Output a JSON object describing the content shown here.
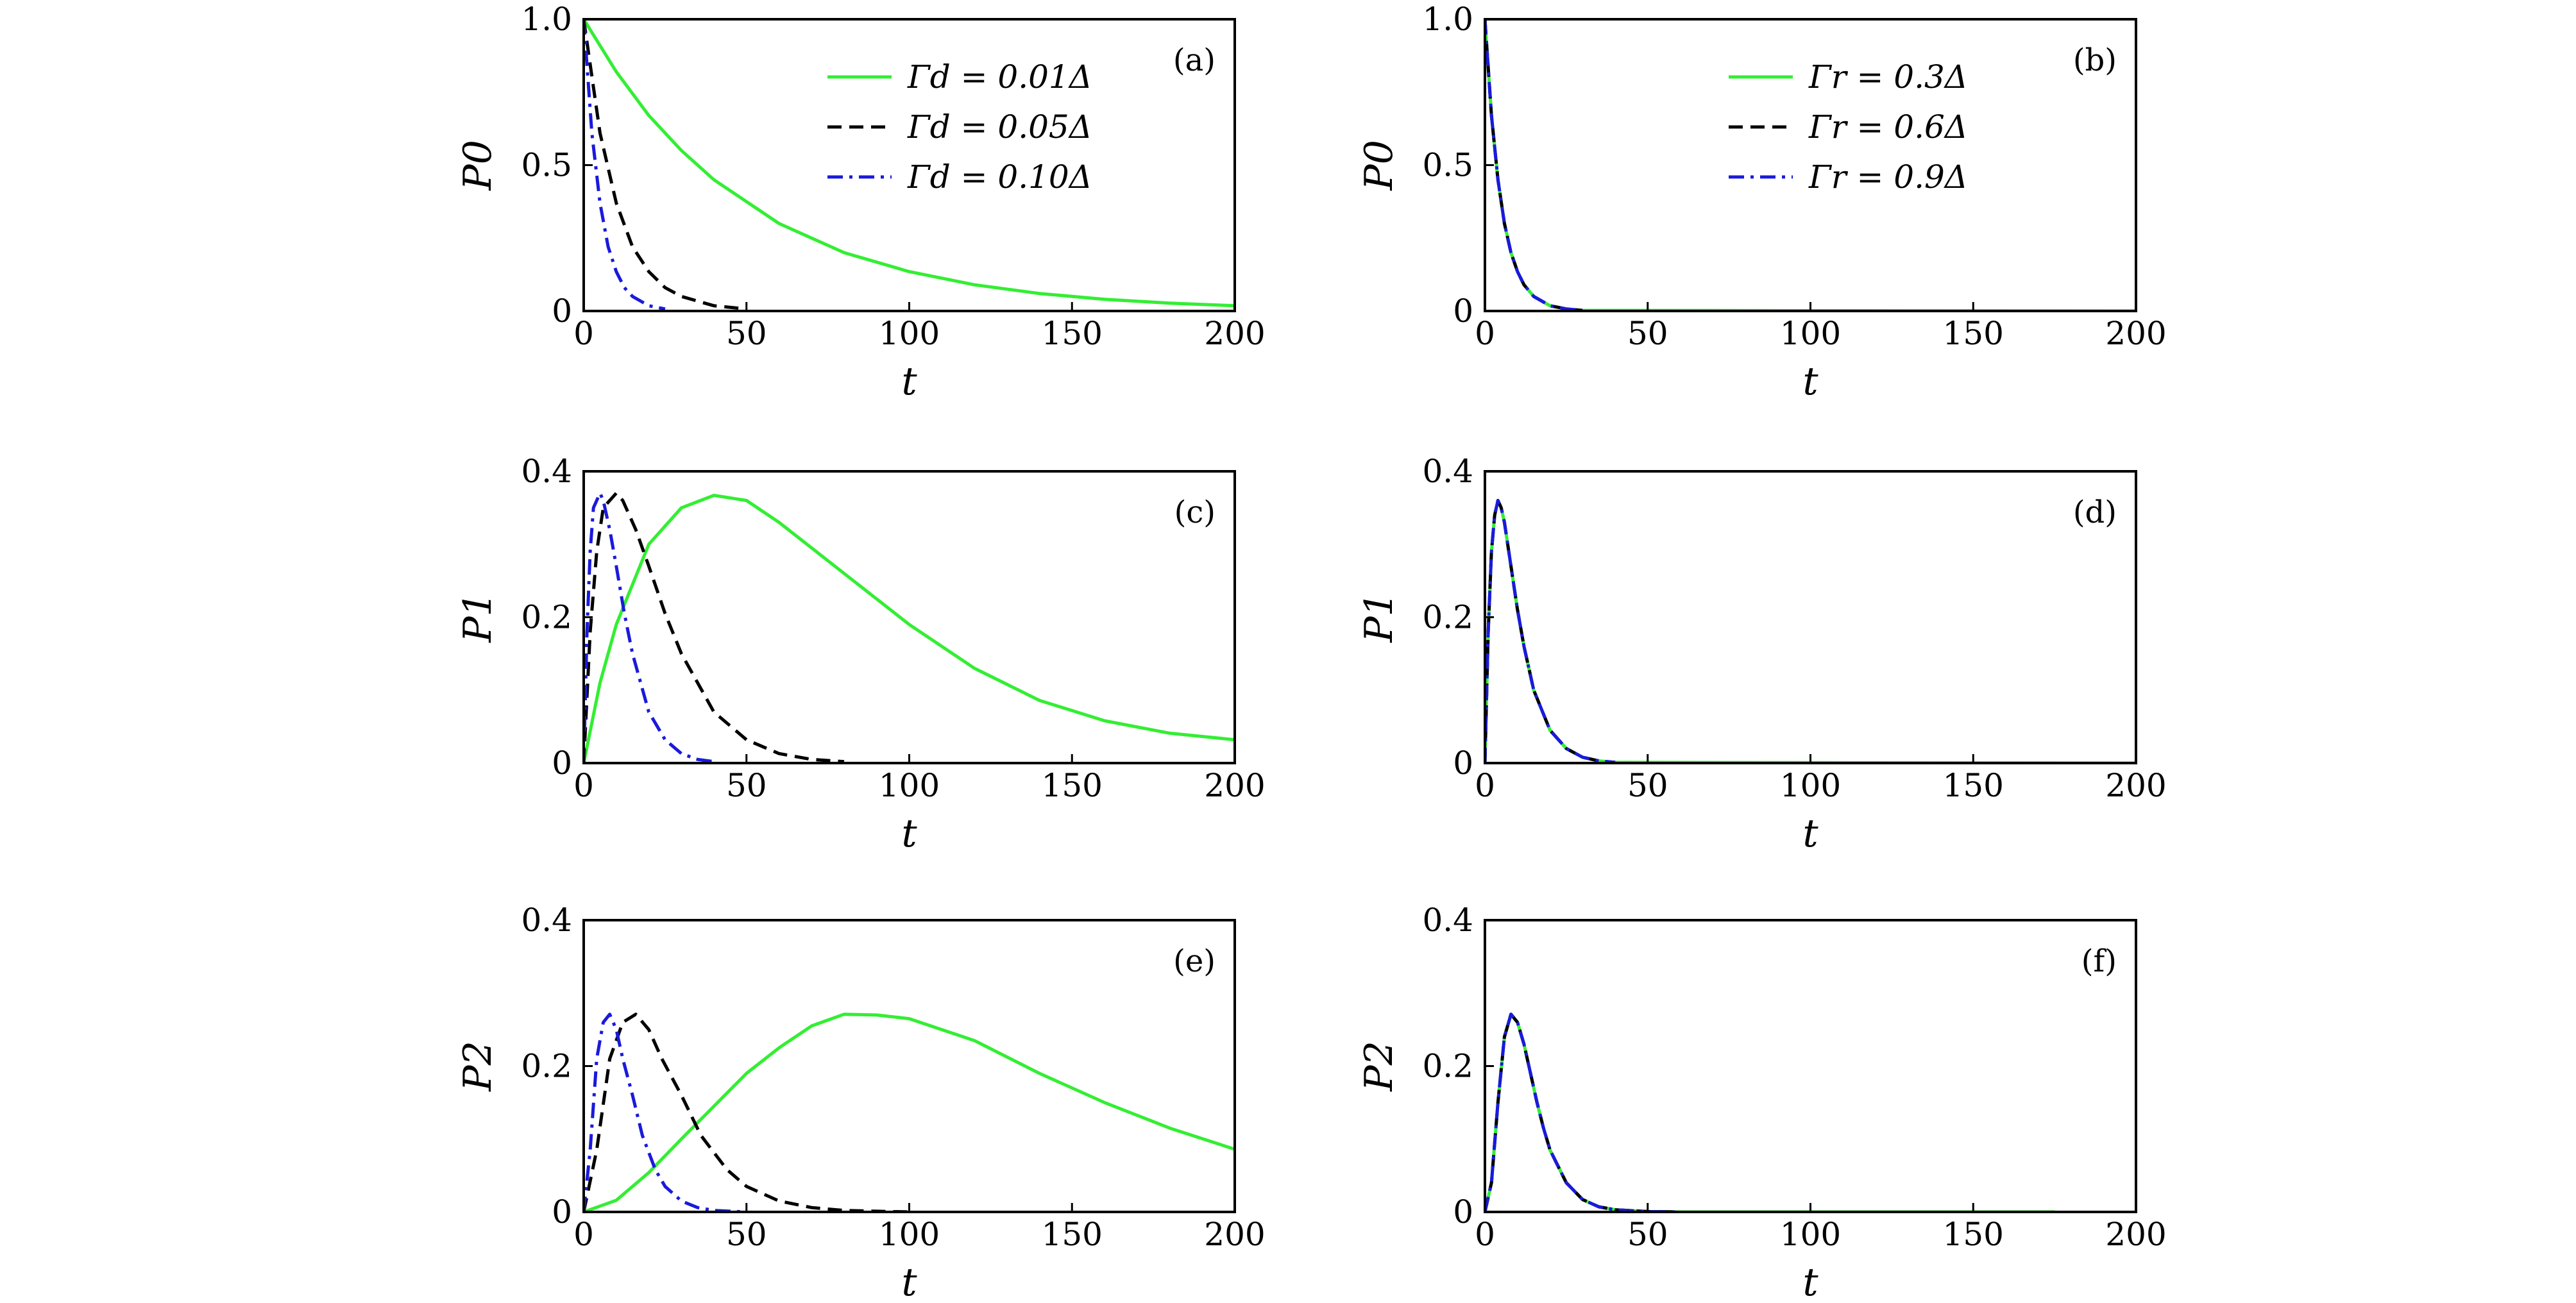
{
  "colors": {
    "green": "#33ee33",
    "black": "#000000",
    "blue": "#1a1adb"
  },
  "legends": {
    "left": [
      "Γd = 0.01Δ",
      "Γd = 0.05Δ",
      "Γd = 0.10Δ"
    ],
    "right": [
      "Γr = 0.3Δ",
      "Γr = 0.6Δ",
      "Γr = 0.9Δ"
    ]
  },
  "chart_data": [
    {
      "panel": "(a)",
      "type": "line",
      "xlabel": "t",
      "ylabel": "P0",
      "xlim": [
        0,
        200
      ],
      "ylim": [
        0,
        1.0
      ],
      "xticks": [
        "0",
        "50",
        "100",
        "150",
        "200"
      ],
      "yticks": [
        "0",
        "0.5",
        "1.0"
      ],
      "legend": "left",
      "series": [
        {
          "name": "Γd = 0.01Δ",
          "color": "green",
          "style": "solid",
          "x": [
            0,
            10,
            20,
            30,
            40,
            60,
            80,
            100,
            120,
            140,
            160,
            180,
            200
          ],
          "y": [
            1.0,
            0.82,
            0.67,
            0.55,
            0.45,
            0.3,
            0.2,
            0.135,
            0.09,
            0.06,
            0.04,
            0.027,
            0.018
          ]
        },
        {
          "name": "Γd = 0.05Δ",
          "color": "black",
          "style": "dashed",
          "x": [
            0,
            5,
            10,
            15,
            20,
            25,
            30,
            40,
            50
          ],
          "y": [
            1.0,
            0.61,
            0.37,
            0.22,
            0.135,
            0.08,
            0.05,
            0.018,
            0.007
          ]
        },
        {
          "name": "Γd = 0.10Δ",
          "color": "blue",
          "style": "dashdot",
          "x": [
            0,
            2.5,
            5,
            7.5,
            10,
            12.5,
            15,
            20,
            25
          ],
          "y": [
            1.0,
            0.61,
            0.37,
            0.22,
            0.135,
            0.08,
            0.05,
            0.018,
            0.007
          ]
        }
      ]
    },
    {
      "panel": "(b)",
      "type": "line",
      "xlabel": "t",
      "ylabel": "P0",
      "xlim": [
        0,
        200
      ],
      "ylim": [
        0,
        1.0
      ],
      "xticks": [
        "0",
        "50",
        "100",
        "150",
        "200"
      ],
      "yticks": [
        "0",
        "0.5",
        "1.0"
      ],
      "legend": "right",
      "series": [
        {
          "name": "Γr = 0.3Δ",
          "color": "green",
          "style": "solid",
          "x": [
            0,
            2,
            4,
            6,
            8,
            10,
            12,
            15,
            20,
            25,
            30,
            200
          ],
          "y": [
            1.0,
            0.67,
            0.45,
            0.3,
            0.2,
            0.135,
            0.09,
            0.05,
            0.018,
            0.007,
            0.002,
            0.0
          ]
        },
        {
          "name": "Γr = 0.6Δ",
          "color": "black",
          "style": "dashed",
          "x": [
            0,
            2,
            4,
            6,
            8,
            10,
            12,
            15,
            20,
            25,
            30
          ],
          "y": [
            1.0,
            0.67,
            0.45,
            0.3,
            0.2,
            0.135,
            0.09,
            0.05,
            0.018,
            0.007,
            0.002
          ]
        },
        {
          "name": "Γr = 0.9Δ",
          "color": "blue",
          "style": "dashdot",
          "x": [
            0,
            2,
            4,
            6,
            8,
            10,
            12,
            15,
            20,
            25,
            30
          ],
          "y": [
            1.0,
            0.67,
            0.45,
            0.3,
            0.2,
            0.135,
            0.09,
            0.05,
            0.018,
            0.007,
            0.002
          ]
        }
      ]
    },
    {
      "panel": "(c)",
      "type": "line",
      "xlabel": "t",
      "ylabel": "P1",
      "xlim": [
        0,
        200
      ],
      "ylim": [
        0,
        0.4
      ],
      "xticks": [
        "0",
        "50",
        "100",
        "150",
        "200"
      ],
      "yticks": [
        "0",
        "0.2",
        "0.4"
      ],
      "series": [
        {
          "name": "Γd = 0.01Δ",
          "color": "green",
          "style": "solid",
          "x": [
            0,
            5,
            10,
            20,
            30,
            40,
            50,
            60,
            80,
            100,
            120,
            140,
            160,
            180,
            200
          ],
          "y": [
            0.0,
            0.11,
            0.19,
            0.3,
            0.35,
            0.367,
            0.36,
            0.33,
            0.26,
            0.19,
            0.13,
            0.086,
            0.058,
            0.041,
            0.032
          ]
        },
        {
          "name": "Γd = 0.05Δ",
          "color": "black",
          "style": "dashed",
          "x": [
            0,
            2,
            4,
            6,
            8,
            10,
            12,
            16,
            20,
            25,
            30,
            40,
            50,
            60,
            70,
            80
          ],
          "y": [
            0.0,
            0.18,
            0.29,
            0.35,
            0.36,
            0.37,
            0.36,
            0.32,
            0.27,
            0.205,
            0.15,
            0.07,
            0.032,
            0.013,
            0.005,
            0.002
          ]
        },
        {
          "name": "Γd = 0.10Δ",
          "color": "blue",
          "style": "dashdot",
          "x": [
            0,
            1,
            2,
            3,
            4,
            5,
            6,
            8,
            10,
            12.5,
            15,
            20,
            25,
            30,
            35,
            40
          ],
          "y": [
            0.0,
            0.18,
            0.29,
            0.35,
            0.36,
            0.37,
            0.36,
            0.32,
            0.27,
            0.205,
            0.15,
            0.07,
            0.032,
            0.013,
            0.005,
            0.002
          ]
        }
      ]
    },
    {
      "panel": "(d)",
      "type": "line",
      "xlabel": "t",
      "ylabel": "P1",
      "xlim": [
        0,
        200
      ],
      "ylim": [
        0,
        0.4
      ],
      "xticks": [
        "0",
        "50",
        "100",
        "150",
        "200"
      ],
      "yticks": [
        "0",
        "0.2",
        "0.4"
      ],
      "series": [
        {
          "name": "Γr = 0.3Δ",
          "color": "green",
          "style": "solid",
          "x": [
            0,
            1,
            2,
            3,
            4,
            5,
            6,
            8,
            10,
            12,
            15,
            20,
            25,
            30,
            35,
            40,
            200
          ],
          "y": [
            0.0,
            0.18,
            0.29,
            0.34,
            0.36,
            0.35,
            0.33,
            0.27,
            0.21,
            0.16,
            0.1,
            0.045,
            0.02,
            0.008,
            0.003,
            0.001,
            0.0
          ]
        },
        {
          "name": "Γr = 0.6Δ",
          "color": "black",
          "style": "dashed",
          "x": [
            0,
            1,
            2,
            3,
            4,
            5,
            6,
            8,
            10,
            12,
            15,
            20,
            25,
            30,
            35,
            40
          ],
          "y": [
            0.0,
            0.18,
            0.29,
            0.34,
            0.36,
            0.35,
            0.33,
            0.27,
            0.21,
            0.16,
            0.1,
            0.045,
            0.02,
            0.008,
            0.003,
            0.001
          ]
        },
        {
          "name": "Γr = 0.9Δ",
          "color": "blue",
          "style": "dashdot",
          "x": [
            0,
            1,
            2,
            3,
            4,
            5,
            6,
            8,
            10,
            12,
            15,
            20,
            25,
            30,
            35,
            40
          ],
          "y": [
            0.0,
            0.18,
            0.29,
            0.34,
            0.36,
            0.35,
            0.33,
            0.27,
            0.21,
            0.16,
            0.1,
            0.045,
            0.02,
            0.008,
            0.003,
            0.001
          ]
        }
      ]
    },
    {
      "panel": "(e)",
      "type": "line",
      "xlabel": "t",
      "ylabel": "P2",
      "xlim": [
        0,
        200
      ],
      "ylim": [
        0,
        0.4
      ],
      "xticks": [
        "0",
        "50",
        "100",
        "150",
        "200"
      ],
      "yticks": [
        "0",
        "0.2",
        "0.4"
      ],
      "series": [
        {
          "name": "Γd = 0.01Δ",
          "color": "green",
          "style": "solid",
          "x": [
            0,
            10,
            20,
            30,
            40,
            50,
            60,
            70,
            80,
            90,
            100,
            120,
            140,
            160,
            180,
            200
          ],
          "y": [
            0.0,
            0.016,
            0.054,
            0.1,
            0.145,
            0.19,
            0.225,
            0.255,
            0.271,
            0.27,
            0.265,
            0.235,
            0.19,
            0.15,
            0.115,
            0.086
          ]
        },
        {
          "name": "Γd = 0.05Δ",
          "color": "black",
          "style": "dashed",
          "x": [
            0,
            4,
            8,
            12,
            16,
            20,
            24,
            30,
            36,
            44,
            50,
            60,
            70,
            80,
            90,
            100
          ],
          "y": [
            0.0,
            0.085,
            0.21,
            0.26,
            0.271,
            0.25,
            0.21,
            0.16,
            0.105,
            0.058,
            0.035,
            0.015,
            0.006,
            0.002,
            0.001,
            0.0
          ]
        },
        {
          "name": "Γd = 0.10Δ",
          "color": "blue",
          "style": "dashdot",
          "x": [
            0,
            2,
            4,
            6,
            8,
            10,
            12,
            15,
            18,
            22,
            25,
            30,
            35,
            40,
            45,
            50
          ],
          "y": [
            0.0,
            0.085,
            0.21,
            0.26,
            0.271,
            0.25,
            0.21,
            0.16,
            0.105,
            0.058,
            0.035,
            0.015,
            0.006,
            0.002,
            0.001,
            0.0
          ]
        }
      ]
    },
    {
      "panel": "(f)",
      "type": "line",
      "xlabel": "t",
      "ylabel": "P2",
      "xlim": [
        0,
        200
      ],
      "ylim": [
        0,
        0.4
      ],
      "xticks": [
        "0",
        "50",
        "100",
        "150",
        "200"
      ],
      "yticks": [
        "0",
        "0.2",
        "0.4"
      ],
      "series": [
        {
          "name": "Γr = 0.3Δ",
          "color": "green",
          "style": "solid",
          "x": [
            0,
            2,
            4,
            6,
            8,
            10,
            12,
            14,
            16,
            18,
            20,
            25,
            30,
            35,
            40,
            50,
            60,
            175
          ],
          "y": [
            0.0,
            0.04,
            0.15,
            0.24,
            0.271,
            0.26,
            0.23,
            0.19,
            0.15,
            0.115,
            0.085,
            0.04,
            0.017,
            0.007,
            0.003,
            0.0005,
            0.0,
            0.0
          ]
        },
        {
          "name": "Γr = 0.6Δ",
          "color": "black",
          "style": "dashed",
          "x": [
            0,
            2,
            4,
            6,
            8,
            10,
            12,
            14,
            16,
            18,
            20,
            25,
            30,
            35,
            40,
            50,
            60
          ],
          "y": [
            0.0,
            0.04,
            0.15,
            0.24,
            0.271,
            0.26,
            0.23,
            0.19,
            0.15,
            0.115,
            0.085,
            0.04,
            0.017,
            0.007,
            0.003,
            0.0005,
            0.0
          ]
        },
        {
          "name": "Γr = 0.9Δ",
          "color": "blue",
          "style": "dashdot",
          "x": [
            0,
            2,
            4,
            6,
            8,
            10,
            12,
            14,
            16,
            18,
            20,
            25,
            30,
            35,
            40,
            50,
            60
          ],
          "y": [
            0.0,
            0.04,
            0.15,
            0.24,
            0.271,
            0.26,
            0.23,
            0.19,
            0.15,
            0.115,
            0.085,
            0.04,
            0.017,
            0.007,
            0.003,
            0.0005,
            0.0
          ]
        }
      ]
    }
  ]
}
